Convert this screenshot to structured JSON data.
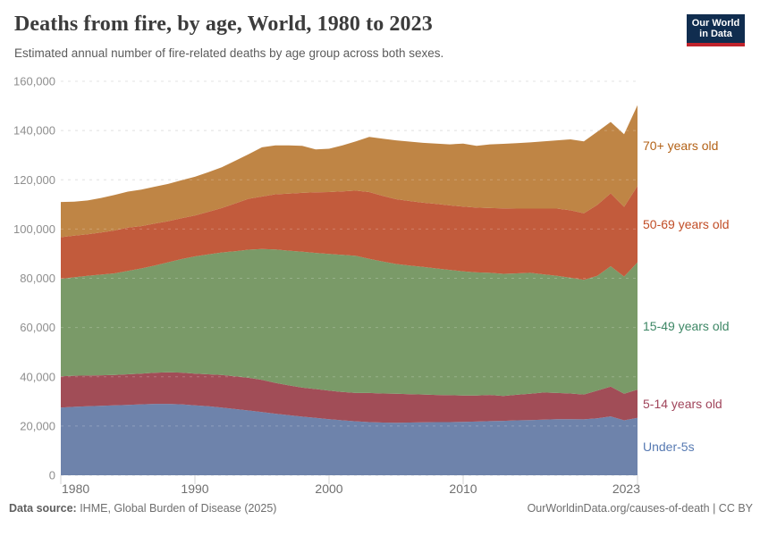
{
  "header": {
    "title": "Deaths from fire, by age, World, 1980 to 2023",
    "subtitle": "Estimated annual number of fire-related deaths by age group across both sexes."
  },
  "logo": {
    "line1": "Our World",
    "line2": "in Data",
    "bg_color": "#102d4f",
    "accent_color": "#c0232c"
  },
  "axes": {
    "y": {
      "tick_values": [
        0,
        20000,
        40000,
        60000,
        80000,
        100000,
        120000,
        140000,
        160000
      ],
      "tick_labels": [
        "0",
        "20,000",
        "40,000",
        "60,000",
        "80,000",
        "100,000",
        "120,000",
        "140,000",
        "160,000"
      ]
    },
    "x": {
      "tick_values": [
        1980,
        1990,
        2000,
        2010,
        2023
      ],
      "tick_labels": [
        "1980",
        "1990",
        "2000",
        "2010",
        "2023"
      ]
    }
  },
  "colors": {
    "grid": "#dcdcdc",
    "grid_overlay": "#ffffff",
    "y_tick_label": "#8e8e8e",
    "x_tick_label": "#6f6f6f",
    "tick_mark": "#d4d4d4"
  },
  "chart_data": {
    "type": "area",
    "stacked": true,
    "title": "Deaths from fire, by age, World, 1980 to 2023",
    "xlabel": "",
    "ylabel": "",
    "ylim": [
      0,
      160000
    ],
    "grid": "dashed-horizontal",
    "legend_position": "right-inline-labels",
    "x": [
      1980,
      1981,
      1982,
      1983,
      1984,
      1985,
      1986,
      1987,
      1988,
      1989,
      1990,
      1991,
      1992,
      1993,
      1994,
      1995,
      1996,
      1997,
      1998,
      1999,
      2000,
      2001,
      2002,
      2003,
      2004,
      2005,
      2006,
      2007,
      2008,
      2009,
      2010,
      2011,
      2012,
      2013,
      2014,
      2015,
      2016,
      2017,
      2018,
      2019,
      2020,
      2021,
      2022,
      2023
    ],
    "series": [
      {
        "name": "Under-5s",
        "color": "#6e83ab",
        "label_color": "#577ab2",
        "values": [
          27500,
          27800,
          28000,
          28200,
          28400,
          28600,
          28800,
          29000,
          29000,
          28800,
          28400,
          28000,
          27500,
          26900,
          26300,
          25700,
          25000,
          24400,
          23800,
          23300,
          22800,
          22300,
          21900,
          21600,
          21400,
          21300,
          21400,
          21500,
          21600,
          21600,
          21700,
          21800,
          22000,
          22100,
          22300,
          22400,
          22600,
          22800,
          22800,
          22700,
          23100,
          23900,
          22300,
          23300
        ]
      },
      {
        "name": "5-14 years old",
        "color": "#a14d57",
        "label_color": "#a0455b",
        "values": [
          12700,
          12600,
          12500,
          12400,
          12300,
          12400,
          12500,
          12600,
          12800,
          12900,
          12900,
          13000,
          13200,
          13300,
          13300,
          13000,
          12500,
          12100,
          11800,
          11700,
          11600,
          11500,
          11500,
          11800,
          11800,
          11800,
          11500,
          11300,
          11000,
          10900,
          10700,
          10600,
          10600,
          10100,
          10400,
          10700,
          11000,
          10600,
          10400,
          10100,
          11300,
          12100,
          10800,
          11500
        ]
      },
      {
        "name": "15-49 years old",
        "color": "#7a9a68",
        "label_color": "#3d8765",
        "values": [
          39600,
          40000,
          40500,
          40900,
          41300,
          42000,
          42700,
          43600,
          44700,
          46100,
          47600,
          48700,
          49800,
          50800,
          52000,
          53200,
          54200,
          54700,
          55200,
          55300,
          55500,
          55700,
          55700,
          54500,
          53600,
          52700,
          52300,
          51800,
          51400,
          50900,
          50400,
          50000,
          49600,
          49600,
          49300,
          49100,
          48000,
          47600,
          47000,
          46600,
          46600,
          48900,
          47600,
          51700
        ]
      },
      {
        "name": "50-69 years old",
        "color": "#c25b3c",
        "label_color": "#c14d26",
        "values": [
          16900,
          16900,
          16900,
          17100,
          17400,
          17600,
          17200,
          17000,
          16700,
          16600,
          16600,
          17300,
          18000,
          19400,
          20700,
          21300,
          22400,
          23200,
          23900,
          24600,
          25100,
          25800,
          26500,
          27100,
          26700,
          26300,
          26200,
          26100,
          26200,
          26200,
          26300,
          26300,
          26300,
          26600,
          26300,
          26100,
          26700,
          27300,
          27400,
          27000,
          28800,
          29600,
          28300,
          31000
        ]
      },
      {
        "name": "70+ years old",
        "color": "#bf8545",
        "label_color": "#b36217",
        "values": [
          14300,
          13800,
          13700,
          14000,
          14400,
          14600,
          14800,
          15000,
          15100,
          15400,
          15700,
          16100,
          16600,
          17300,
          18100,
          20000,
          19900,
          19600,
          19100,
          17400,
          17600,
          18700,
          20000,
          22400,
          23200,
          23900,
          24100,
          24300,
          24500,
          24800,
          25600,
          25100,
          25900,
          26200,
          26600,
          26900,
          27300,
          27700,
          28800,
          29200,
          29700,
          29000,
          29500,
          32800
        ]
      }
    ]
  },
  "footer": {
    "source_label": "Data source:",
    "source_text": " IHME, Global Burden of Disease (2025)",
    "right_text": "OurWorldinData.org/causes-of-death | CC BY"
  }
}
